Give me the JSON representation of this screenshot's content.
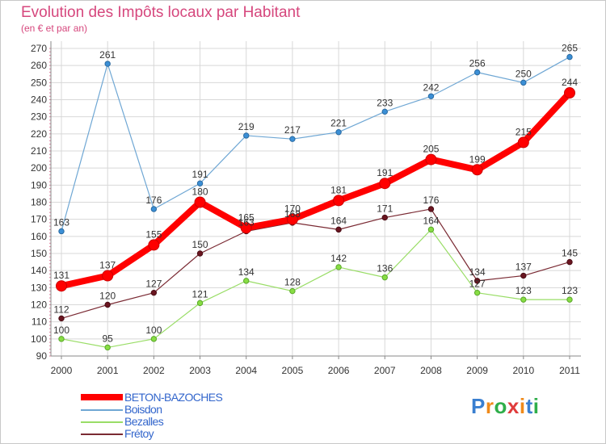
{
  "title": "Evolution des Impôts locaux par Habitant",
  "subtitle": "(en € et par an)",
  "logo": "Proxiti",
  "chart_data": {
    "type": "line",
    "title": "Evolution des Impôts locaux par Habitant",
    "subtitle": "(en € et par an)",
    "xlabel": "",
    "ylabel": "",
    "x": [
      "2000",
      "2001",
      "2002",
      "2003",
      "2004",
      "2005",
      "2006",
      "2007",
      "2008",
      "2009",
      "2010",
      "2011"
    ],
    "ylim": [
      90,
      270
    ],
    "yticks": [
      90,
      100,
      110,
      120,
      130,
      140,
      150,
      160,
      170,
      180,
      190,
      200,
      210,
      220,
      230,
      240,
      250,
      260,
      270
    ],
    "grid": true,
    "legend_position": "bottom-left",
    "series": [
      {
        "name": "BETON-BAZOCHES",
        "color": "#ff0000",
        "values": [
          131,
          137,
          155,
          180,
          165,
          170,
          181,
          191,
          205,
          199,
          215,
          244
        ]
      },
      {
        "name": "Boisdon",
        "color": "#6fa7d4",
        "values": [
          163,
          261,
          176,
          191,
          219,
          217,
          221,
          233,
          242,
          256,
          250,
          265
        ]
      },
      {
        "name": "Bezalles",
        "color": "#99dd66",
        "values": [
          100,
          95,
          100,
          121,
          134,
          128,
          142,
          136,
          164,
          127,
          123,
          123
        ]
      },
      {
        "name": "Frétoy",
        "color": "#7a2a33",
        "values": [
          112,
          120,
          127,
          150,
          163,
          168,
          164,
          171,
          176,
          134,
          137,
          145
        ]
      }
    ]
  }
}
